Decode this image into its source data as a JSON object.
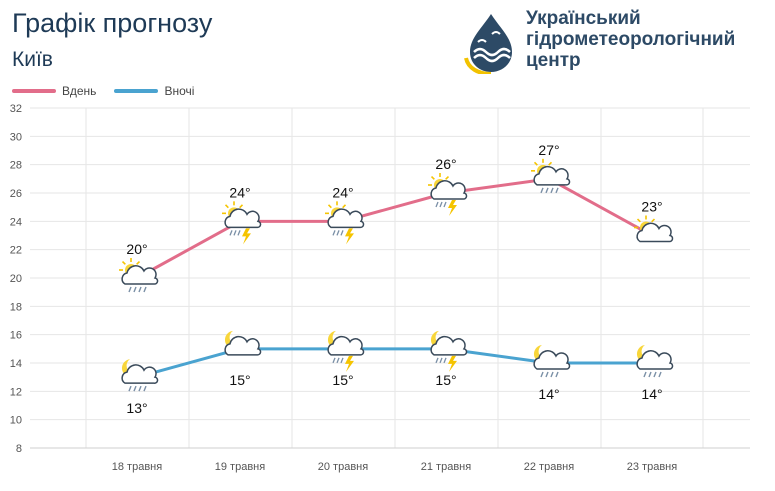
{
  "header": {
    "title": "Графік прогнозу",
    "city": "Київ",
    "org_lines": [
      "Український",
      "гідрометеорологічний",
      "центр"
    ]
  },
  "colors": {
    "day": "#e26d8a",
    "night": "#4aa3d0",
    "grid": "#e6e6e6",
    "text": "#1e3a56"
  },
  "chart_data": {
    "type": "line",
    "categories": [
      "18 травня",
      "19 травня",
      "20 травня",
      "21 травня",
      "22 травня",
      "23 травня"
    ],
    "ylim": [
      8,
      32
    ],
    "yticks": [
      8,
      10,
      12,
      14,
      16,
      18,
      20,
      22,
      24,
      26,
      28,
      30,
      32
    ],
    "grid": true,
    "legend": "top-left",
    "series": [
      {
        "name": "Вдень",
        "values": [
          20,
          24,
          24,
          26,
          27,
          23
        ],
        "labels": [
          "20°",
          "24°",
          "24°",
          "26°",
          "27°",
          "23°"
        ],
        "icons": [
          "sun-cloud-rain-icon",
          "sun-cloud-thunder-icon",
          "sun-cloud-thunder-icon",
          "sun-cloud-thunder-icon",
          "sun-cloud-rain-icon",
          "sun-cloud-icon"
        ]
      },
      {
        "name": "Вночі",
        "values": [
          13,
          15,
          15,
          15,
          14,
          14
        ],
        "labels": [
          "13°",
          "15°",
          "15°",
          "15°",
          "14°",
          "14°"
        ],
        "icons": [
          "moon-cloud-rain-icon",
          "moon-cloud-icon",
          "moon-cloud-thunder-icon",
          "moon-cloud-thunder-icon",
          "moon-cloud-rain-icon",
          "moon-cloud-rain-icon"
        ]
      }
    ]
  }
}
